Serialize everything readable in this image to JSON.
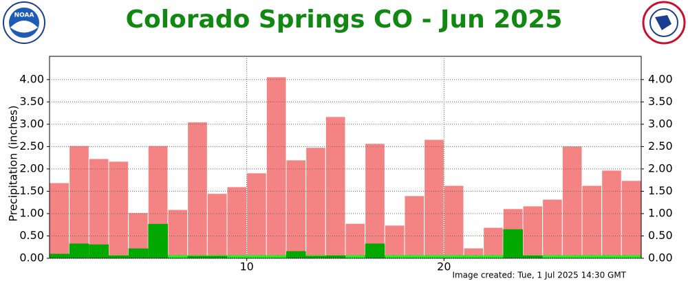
{
  "chart_data": {
    "type": "bar",
    "title": "Colorado Springs CO - Jun 2025",
    "y_label": "Precipitation (inches)",
    "footer": "Image created: Tue, 1 Jul 2025 14:30 GMT",
    "logo_left": "NOAA",
    "x": [
      1,
      2,
      3,
      4,
      5,
      6,
      7,
      8,
      9,
      10,
      11,
      12,
      13,
      14,
      15,
      16,
      17,
      18,
      19,
      20,
      21,
      22,
      23,
      24,
      25,
      26,
      27,
      28,
      29,
      30
    ],
    "xlim": [
      0,
      30
    ],
    "xticks": [
      10,
      20
    ],
    "ylim": [
      0,
      4.52
    ],
    "yticks": [
      {
        "value": 0,
        "label": "0.00"
      },
      {
        "value": 0.5,
        "label": "0.50"
      },
      {
        "value": 1,
        "label": "1.00"
      },
      {
        "value": 1.5,
        "label": "1.50"
      },
      {
        "value": 2,
        "label": "2.00"
      },
      {
        "value": 2.5,
        "label": "2.50"
      },
      {
        "value": 3,
        "label": "3.00"
      },
      {
        "value": 3.5,
        "label": "3.50"
      },
      {
        "value": 4,
        "label": "4.00"
      }
    ],
    "grid": true,
    "series": [
      {
        "color": "#f48484",
        "values": [
          1.69,
          2.52,
          2.23,
          2.17,
          1.02,
          2.52,
          1.09,
          3.05,
          1.45,
          1.6,
          1.91,
          4.06,
          2.2,
          2.48,
          3.17,
          0.78,
          2.57,
          0.74,
          1.4,
          2.66,
          1.63,
          0.23,
          0.69,
          1.11,
          1.17,
          1.32,
          2.51,
          1.63,
          1.97,
          1.74
        ]
      },
      {
        "color": "#22ee22",
        "values": [
          0.07,
          0.07,
          0.07,
          0.07,
          0.07,
          0.07,
          0.07,
          0.07,
          0.07,
          0.07,
          0.07,
          0.07,
          0.07,
          0.07,
          0.07,
          0.07,
          0.07,
          0.07,
          0.07,
          0.07,
          0.07,
          0.07,
          0.07,
          0.07,
          0.07,
          0.07,
          0.07,
          0.07,
          0.07,
          0.07
        ]
      },
      {
        "color": "#00a800",
        "values": [
          0.1,
          0.33,
          0.31,
          0.06,
          0.22,
          0.77,
          0,
          0.05,
          0.05,
          0,
          0,
          0,
          0.16,
          0.05,
          0.06,
          0,
          0.33,
          0,
          0,
          0,
          0,
          0,
          0,
          0.65,
          0.06,
          0,
          0,
          0,
          0,
          0
        ]
      }
    ]
  }
}
